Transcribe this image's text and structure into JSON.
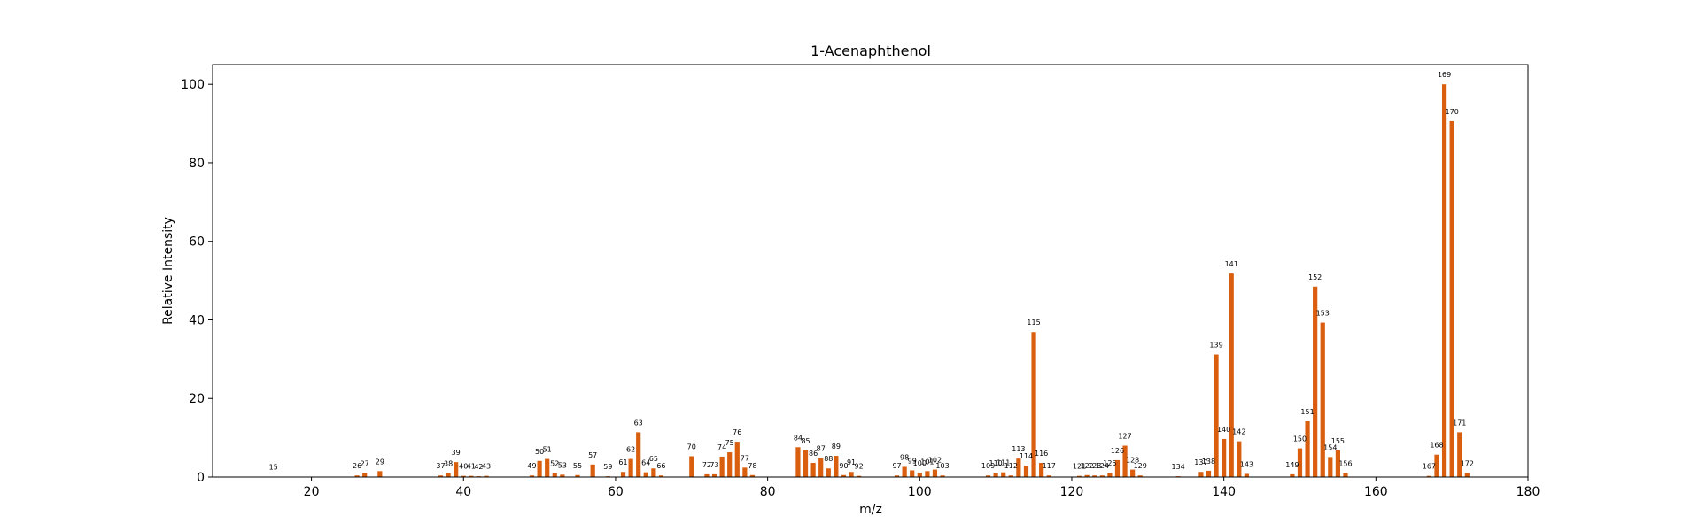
{
  "chart_data": {
    "type": "bar",
    "title": "1-Acenaphthenol",
    "xlabel": "m/z",
    "ylabel": "Relative Intensity",
    "xlim": [
      7,
      180
    ],
    "ylim": [
      0,
      105
    ],
    "xticks": [
      20,
      40,
      60,
      80,
      100,
      120,
      140,
      160,
      180
    ],
    "yticks": [
      0,
      20,
      40,
      60,
      80,
      100
    ],
    "grid": false,
    "bar_color": "#d95f0e",
    "points": [
      {
        "x": 15,
        "y": 0.1
      },
      {
        "x": 26,
        "y": 0.4
      },
      {
        "x": 27,
        "y": 1.0
      },
      {
        "x": 29,
        "y": 1.5
      },
      {
        "x": 37,
        "y": 0.4
      },
      {
        "x": 38,
        "y": 1.0
      },
      {
        "x": 39,
        "y": 3.8
      },
      {
        "x": 40,
        "y": 0.3
      },
      {
        "x": 41,
        "y": 0.3
      },
      {
        "x": 42,
        "y": 0.2
      },
      {
        "x": 43,
        "y": 0.3
      },
      {
        "x": 49,
        "y": 0.4
      },
      {
        "x": 50,
        "y": 4.1
      },
      {
        "x": 51,
        "y": 4.6
      },
      {
        "x": 52,
        "y": 1.0
      },
      {
        "x": 53,
        "y": 0.6
      },
      {
        "x": 55,
        "y": 0.5
      },
      {
        "x": 57,
        "y": 3.2
      },
      {
        "x": 59,
        "y": 0.2
      },
      {
        "x": 61,
        "y": 1.3
      },
      {
        "x": 62,
        "y": 4.6
      },
      {
        "x": 63,
        "y": 11.4
      },
      {
        "x": 64,
        "y": 1.2
      },
      {
        "x": 65,
        "y": 2.2
      },
      {
        "x": 66,
        "y": 0.4
      },
      {
        "x": 70,
        "y": 5.3
      },
      {
        "x": 72,
        "y": 0.7
      },
      {
        "x": 73,
        "y": 0.7
      },
      {
        "x": 74,
        "y": 5.2
      },
      {
        "x": 75,
        "y": 6.3
      },
      {
        "x": 76,
        "y": 9.0
      },
      {
        "x": 77,
        "y": 2.4
      },
      {
        "x": 78,
        "y": 0.5
      },
      {
        "x": 84,
        "y": 7.6
      },
      {
        "x": 85,
        "y": 6.8
      },
      {
        "x": 86,
        "y": 3.6
      },
      {
        "x": 87,
        "y": 4.8
      },
      {
        "x": 88,
        "y": 2.2
      },
      {
        "x": 89,
        "y": 5.4
      },
      {
        "x": 90,
        "y": 0.5
      },
      {
        "x": 91,
        "y": 1.3
      },
      {
        "x": 92,
        "y": 0.3
      },
      {
        "x": 97,
        "y": 0.4
      },
      {
        "x": 98,
        "y": 2.6
      },
      {
        "x": 99,
        "y": 1.7
      },
      {
        "x": 100,
        "y": 1.1
      },
      {
        "x": 101,
        "y": 1.5
      },
      {
        "x": 102,
        "y": 1.9
      },
      {
        "x": 103,
        "y": 0.4
      },
      {
        "x": 109,
        "y": 0.4
      },
      {
        "x": 110,
        "y": 1.1
      },
      {
        "x": 111,
        "y": 1.2
      },
      {
        "x": 112,
        "y": 0.4
      },
      {
        "x": 113,
        "y": 4.7
      },
      {
        "x": 114,
        "y": 2.9
      },
      {
        "x": 115,
        "y": 36.9
      },
      {
        "x": 116,
        "y": 3.6
      },
      {
        "x": 117,
        "y": 0.4
      },
      {
        "x": 121,
        "y": 0.3
      },
      {
        "x": 122,
        "y": 0.5
      },
      {
        "x": 123,
        "y": 0.4
      },
      {
        "x": 124,
        "y": 0.4
      },
      {
        "x": 125,
        "y": 1.1
      },
      {
        "x": 126,
        "y": 4.3
      },
      {
        "x": 127,
        "y": 8.0
      },
      {
        "x": 128,
        "y": 1.9
      },
      {
        "x": 129,
        "y": 0.4
      },
      {
        "x": 134,
        "y": 0.2
      },
      {
        "x": 137,
        "y": 1.3
      },
      {
        "x": 138,
        "y": 1.6
      },
      {
        "x": 139,
        "y": 31.2
      },
      {
        "x": 140,
        "y": 9.7
      },
      {
        "x": 141,
        "y": 51.8
      },
      {
        "x": 142,
        "y": 9.1
      },
      {
        "x": 143,
        "y": 0.8
      },
      {
        "x": 149,
        "y": 0.7
      },
      {
        "x": 150,
        "y": 7.3
      },
      {
        "x": 151,
        "y": 14.2
      },
      {
        "x": 152,
        "y": 48.5
      },
      {
        "x": 153,
        "y": 39.3
      },
      {
        "x": 154,
        "y": 5.1
      },
      {
        "x": 155,
        "y": 6.8
      },
      {
        "x": 156,
        "y": 1.0
      },
      {
        "x": 167,
        "y": 0.3
      },
      {
        "x": 168,
        "y": 5.7
      },
      {
        "x": 169,
        "y": 100.0
      },
      {
        "x": 170,
        "y": 90.6
      },
      {
        "x": 171,
        "y": 11.4
      },
      {
        "x": 172,
        "y": 1.0
      }
    ]
  }
}
